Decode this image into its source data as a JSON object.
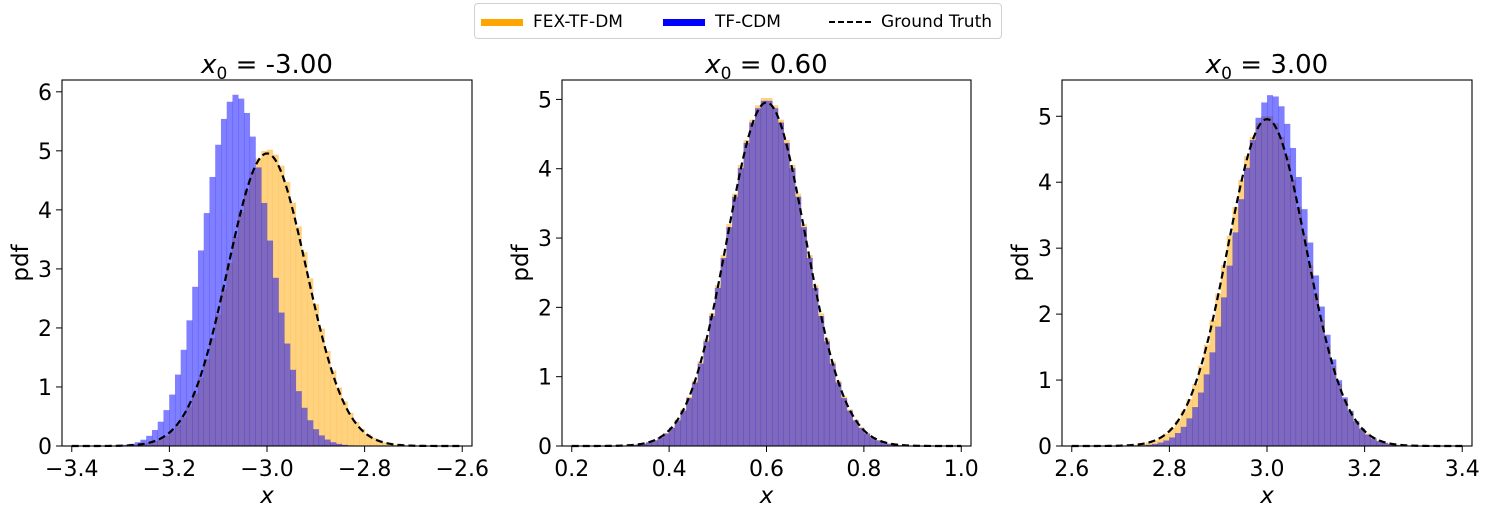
{
  "legend": {
    "items": [
      {
        "label": "FEX-TF-DM",
        "color": "#FFA500",
        "style": "solid"
      },
      {
        "label": "TF-CDM",
        "color": "#0000FF",
        "style": "solid"
      },
      {
        "label": "Ground Truth",
        "color": "#000000",
        "style": "dashed"
      }
    ]
  },
  "chart_data": [
    {
      "type": "histogram",
      "title_var": "x",
      "title_sub": "0",
      "title_rest": " = -3.00",
      "xlabel": "x",
      "ylabel": "pdf",
      "xlim": [
        -3.42,
        -2.58
      ],
      "ylim": [
        0,
        6.2
      ],
      "xticks": [
        -3.4,
        -3.2,
        -3.0,
        -2.8,
        -2.6
      ],
      "xtick_labels": [
        "−3.4",
        "−3.2",
        "−3.0",
        "−2.8",
        "−2.6"
      ],
      "yticks": [
        0,
        1,
        2,
        3,
        4,
        5,
        6
      ],
      "ytick_labels": [
        "0",
        "1",
        "2",
        "3",
        "4",
        "5",
        "6"
      ],
      "ground_truth": {
        "mean": -3.0,
        "std": 0.0805,
        "x_range": [
          -3.4,
          -2.6
        ]
      },
      "series": [
        {
          "name": "FEX-TF-DM",
          "color": "#FFA500",
          "kind": "hist",
          "mean": -3.0,
          "std": 0.0805,
          "skew": 0.03,
          "peak": 5.02,
          "bins": 56,
          "range": [
            -3.33,
            -2.67
          ]
        },
        {
          "name": "TF-CDM",
          "color": "#0000FF",
          "kind": "hist",
          "mean": -3.05,
          "std": 0.068,
          "skew": -0.2,
          "peak": 5.95,
          "bins": 56,
          "range": [
            -3.33,
            -2.67
          ]
        }
      ]
    },
    {
      "type": "histogram",
      "title_var": "x",
      "title_sub": "0",
      "title_rest": " = 0.60",
      "xlabel": "x",
      "ylabel": "pdf",
      "xlim": [
        0.18,
        1.02
      ],
      "ylim": [
        0,
        5.28
      ],
      "xticks": [
        0.2,
        0.4,
        0.6,
        0.8,
        1.0
      ],
      "xtick_labels": [
        "0.2",
        "0.4",
        "0.6",
        "0.8",
        "1.0"
      ],
      "yticks": [
        0,
        1,
        2,
        3,
        4,
        5
      ],
      "ytick_labels": [
        "0",
        "1",
        "2",
        "3",
        "4",
        "5"
      ],
      "ground_truth": {
        "mean": 0.6,
        "std": 0.0805,
        "x_range": [
          0.2,
          1.0
        ]
      },
      "series": [
        {
          "name": "FEX-TF-DM",
          "color": "#FFA500",
          "kind": "hist",
          "mean": 0.6,
          "std": 0.0805,
          "skew": 0.0,
          "peak": 5.02,
          "bins": 56,
          "range": [
            0.27,
            0.93
          ]
        },
        {
          "name": "TF-CDM",
          "color": "#0000FF",
          "kind": "hist",
          "mean": 0.6,
          "std": 0.08,
          "skew": 0.0,
          "peak": 4.98,
          "bins": 56,
          "range": [
            0.27,
            0.93
          ]
        }
      ]
    },
    {
      "type": "histogram",
      "title_var": "x",
      "title_sub": "0",
      "title_rest": " = 3.00",
      "xlabel": "x",
      "ylabel": "pdf",
      "xlim": [
        2.58,
        3.42
      ],
      "ylim": [
        0,
        5.55
      ],
      "xticks": [
        2.6,
        2.8,
        3.0,
        3.2,
        3.4
      ],
      "xtick_labels": [
        "2.6",
        "2.8",
        "3.0",
        "3.2",
        "3.4"
      ],
      "yticks": [
        0,
        1,
        2,
        3,
        4,
        5
      ],
      "ytick_labels": [
        "0",
        "1",
        "2",
        "3",
        "4",
        "5"
      ],
      "ground_truth": {
        "mean": 3.0,
        "std": 0.0805,
        "x_range": [
          2.6,
          3.4
        ]
      },
      "series": [
        {
          "name": "FEX-TF-DM",
          "color": "#FFA500",
          "kind": "hist",
          "mean": 3.0,
          "std": 0.0805,
          "skew": 0.0,
          "peak": 5.0,
          "bins": 56,
          "range": [
            2.67,
            3.33
          ]
        },
        {
          "name": "TF-CDM",
          "color": "#0000FF",
          "kind": "hist",
          "mean": 3.01,
          "std": 0.075,
          "skew": 0.0,
          "peak": 5.32,
          "bins": 56,
          "range": [
            2.67,
            3.33
          ]
        }
      ]
    }
  ]
}
